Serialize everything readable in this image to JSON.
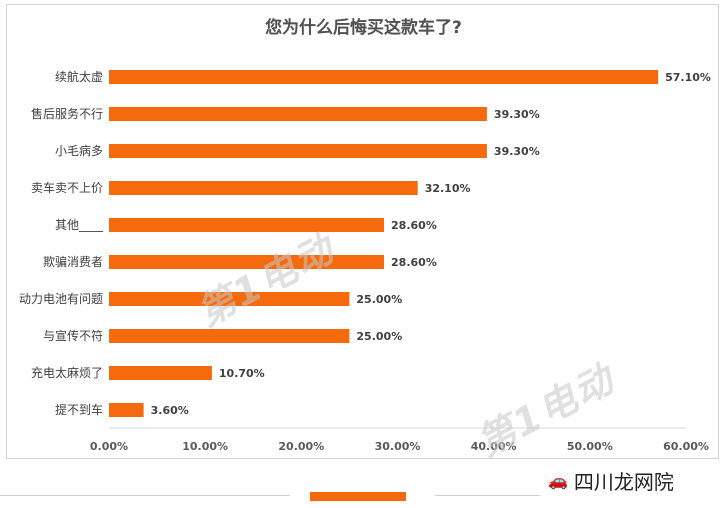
{
  "chart_data": {
    "type": "bar",
    "orientation": "horizontal",
    "title": "您为什么后悔买这款车了?",
    "categories": [
      "续航太虚",
      "售后服务不行",
      "小毛病多",
      "卖车卖不上价",
      "其他____",
      "欺骗消费者",
      "动力电池有问题",
      "与宣传不符",
      "充电太麻烦了",
      "提不到车"
    ],
    "values": [
      57.1,
      39.3,
      39.3,
      32.1,
      28.6,
      28.6,
      25.0,
      25.0,
      10.7,
      3.6
    ],
    "value_labels": [
      "57.10%",
      "39.30%",
      "39.30%",
      "32.10%",
      "28.60%",
      "28.60%",
      "25.00%",
      "25.00%",
      "10.70%",
      "3.60%"
    ],
    "xlim": [
      0,
      60
    ],
    "xticks": [
      "0.00%",
      "10.00%",
      "20.00%",
      "30.00%",
      "40.00%",
      "50.00%",
      "60.00%"
    ],
    "bar_color": "#f56a0d",
    "grid": false,
    "legend": "none"
  },
  "watermark": {
    "text": "第1电动",
    "color": "#c8c8c8"
  },
  "brand": {
    "text": "四川龙网院"
  }
}
